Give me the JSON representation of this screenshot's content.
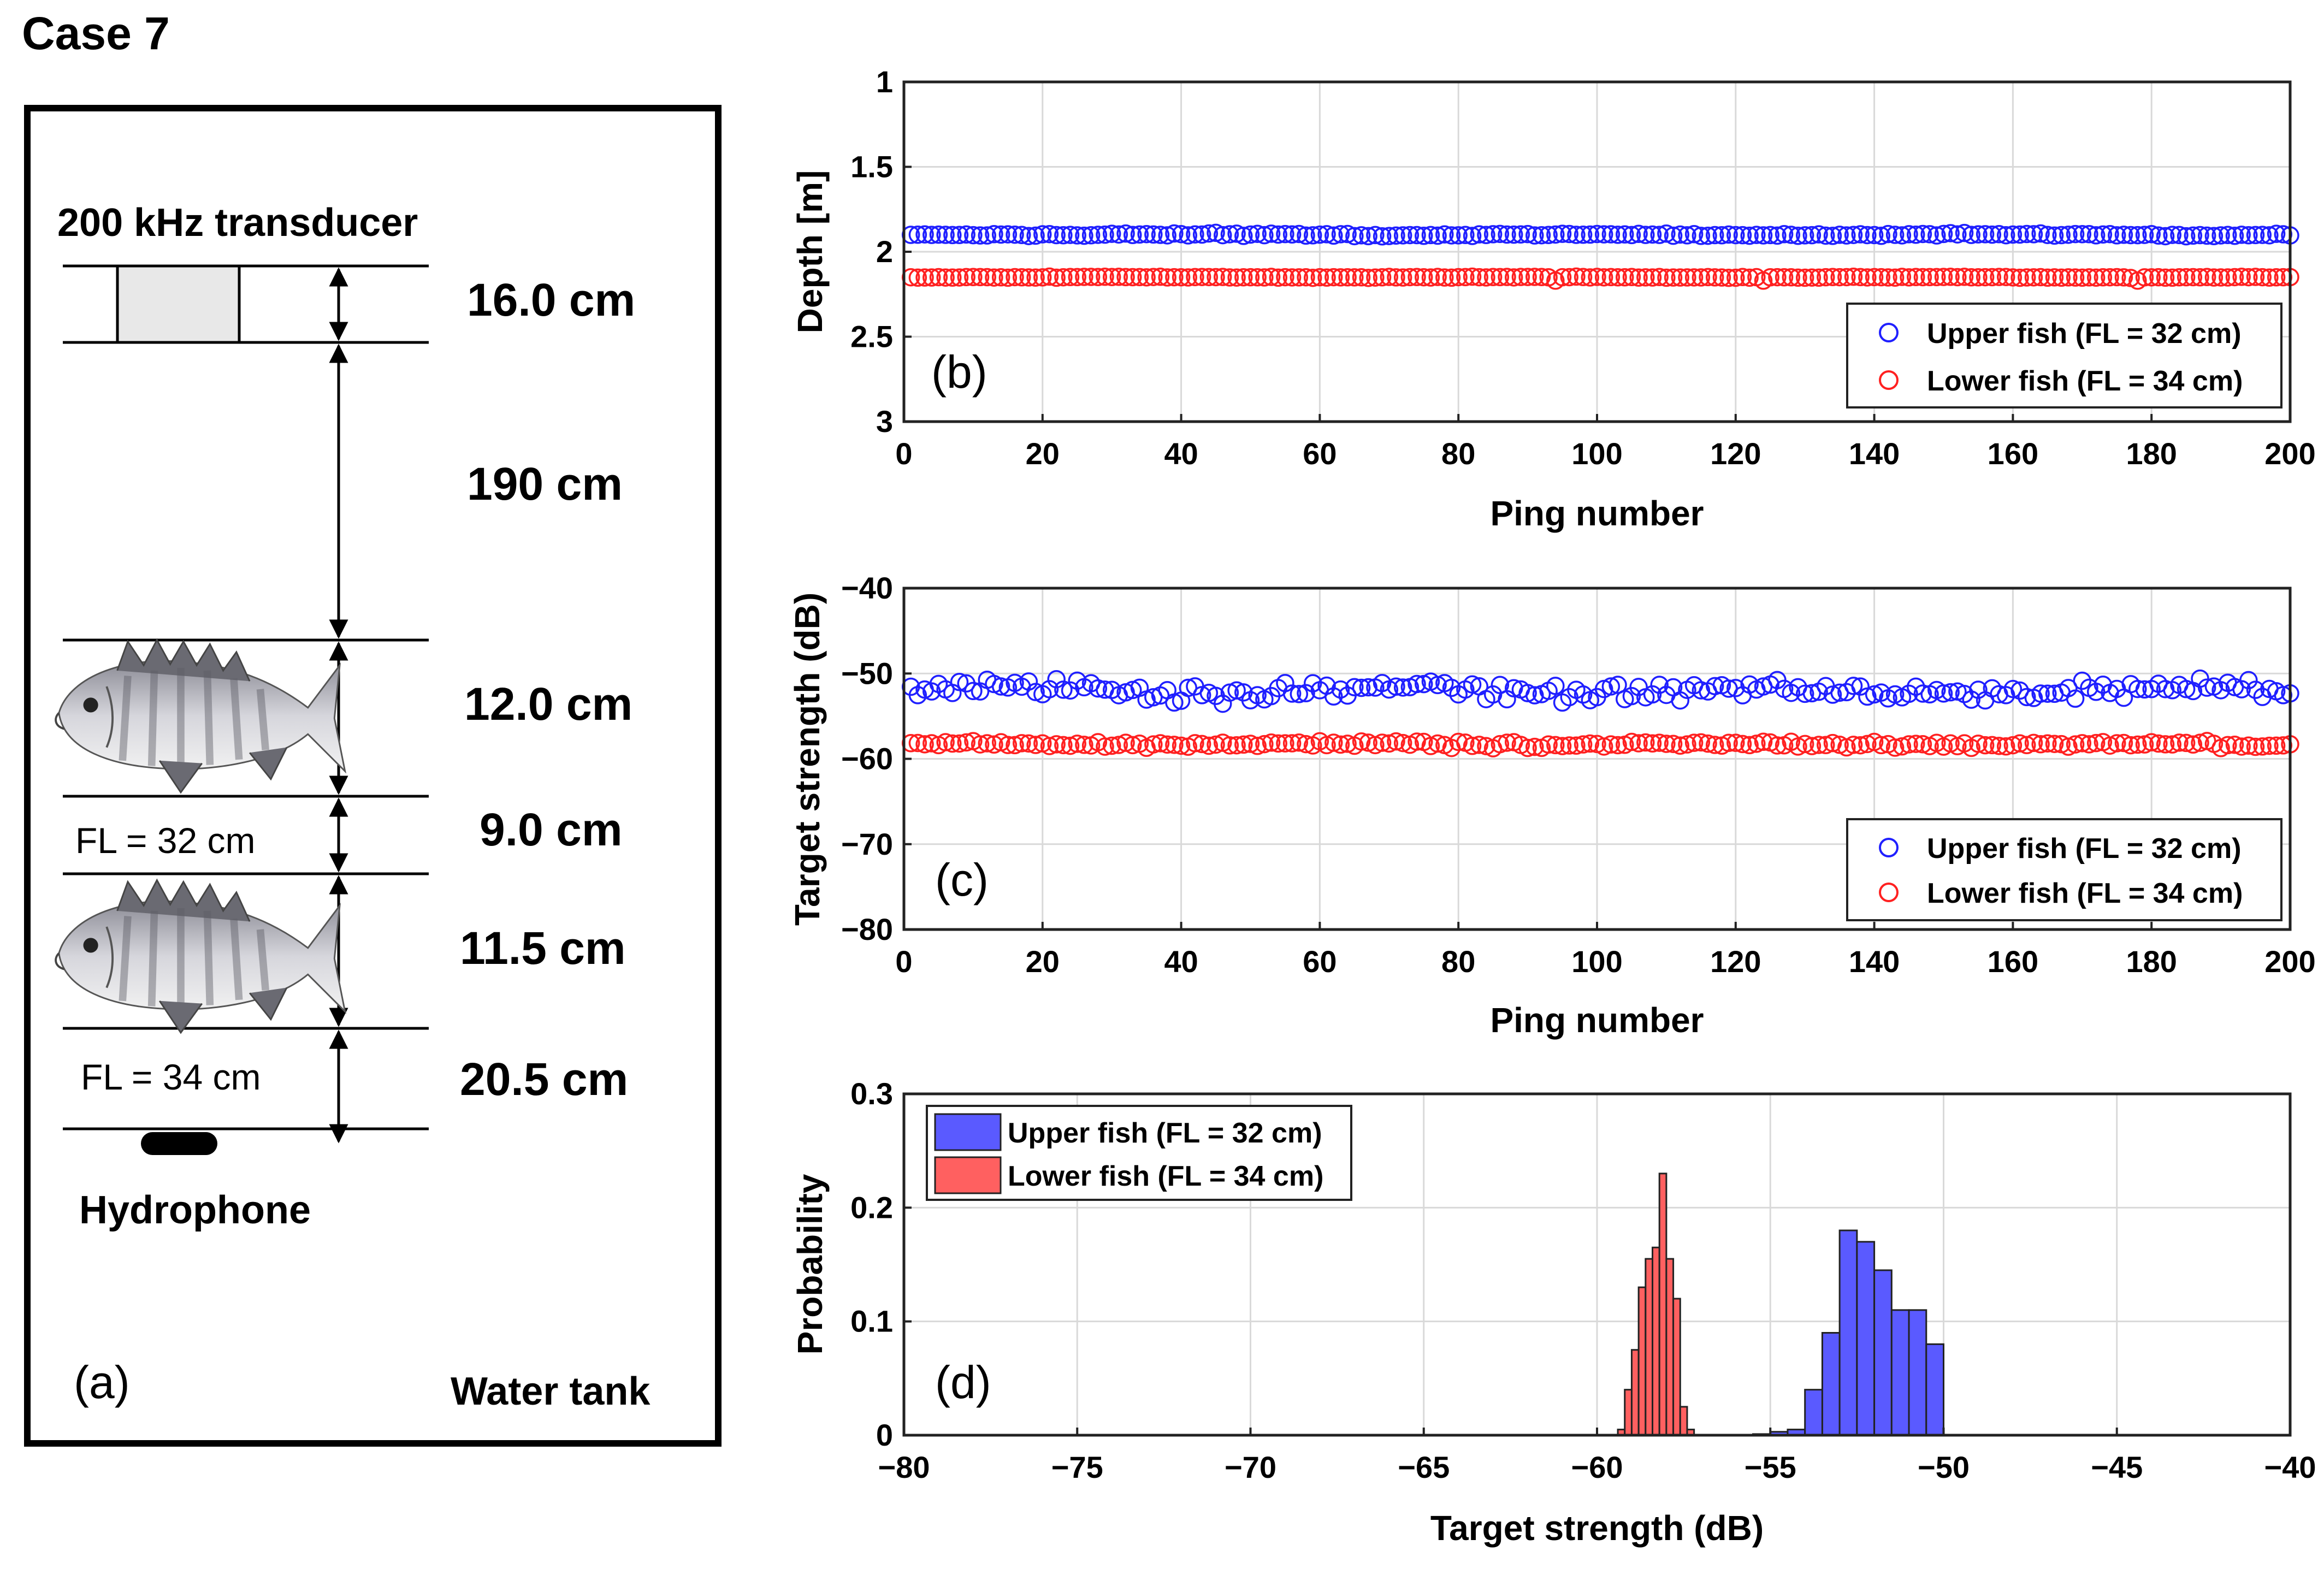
{
  "figure_title": "Case 7",
  "diagram": {
    "panel_label": "(a)",
    "tank_label": "Water tank",
    "transducer_label": "200 kHz transducer",
    "hydrophone_label": "Hydrophone",
    "upper_fish_label": "FL = 32 cm",
    "lower_fish_label": "FL = 34 cm",
    "distances": [
      "16.0 cm",
      "190 cm",
      "12.0 cm",
      "9.0 cm",
      "11.5 cm",
      "20.5 cm"
    ],
    "colors": {
      "transducer_fill": "#e8e8e8",
      "hydrophone": "#000000"
    },
    "icons": [
      "fish-icon",
      "hydrophone-icon"
    ]
  },
  "chart_data": [
    {
      "id": "b",
      "type": "scatter",
      "panel_label": "(b)",
      "xlabel": "Ping number",
      "ylabel": "Depth [m]",
      "xlim": [
        0,
        200
      ],
      "ylim": [
        1,
        3
      ],
      "y_reversed": true,
      "xticks": [
        "0",
        "20",
        "40",
        "60",
        "80",
        "100",
        "120",
        "140",
        "160",
        "180",
        "200"
      ],
      "yticks": [
        "1",
        "1.5",
        "2",
        "2.5",
        "3"
      ],
      "grid": true,
      "legend_position": "bottom-right",
      "series": [
        {
          "name": "Upper fish (FL = 32 cm)",
          "color": "#1f1fff",
          "marker": "open-circle",
          "pattern": {
            "count": 200,
            "mean": 1.9,
            "jitter": 0.01,
            "outliers": []
          }
        },
        {
          "name": "Lower fish (FL = 34 cm)",
          "color": "#ff2020",
          "marker": "open-circle",
          "pattern": {
            "count": 200,
            "mean": 2.15,
            "jitter": 0.004,
            "outliers": [
              [
                94,
                2.17
              ],
              [
                124,
                2.17
              ],
              [
                178,
                2.17
              ]
            ]
          }
        }
      ]
    },
    {
      "id": "c",
      "type": "scatter",
      "panel_label": "(c)",
      "xlabel": "Ping number",
      "ylabel": "Target strength (dB)",
      "xlim": [
        0,
        200
      ],
      "ylim": [
        -80,
        -40
      ],
      "xticks": [
        "0",
        "20",
        "40",
        "60",
        "80",
        "100",
        "120",
        "140",
        "160",
        "180",
        "200"
      ],
      "yticks": [
        "−40",
        "−50",
        "−60",
        "−70",
        "−80"
      ],
      "grid": true,
      "legend_position": "bottom-right",
      "series": [
        {
          "name": "Upper fish (FL = 32 cm)",
          "color": "#1f1fff",
          "marker": "open-circle",
          "pattern": {
            "count": 200,
            "mean": -52,
            "jitter": 1.6
          }
        },
        {
          "name": "Lower fish (FL = 34 cm)",
          "color": "#ff2020",
          "marker": "open-circle",
          "pattern": {
            "count": 200,
            "mean": -58.3,
            "jitter": 0.5
          }
        }
      ]
    },
    {
      "id": "d",
      "type": "bar",
      "subtype": "histogram",
      "panel_label": "(d)",
      "xlabel": "Target strength (dB)",
      "ylabel": "Probability",
      "xlim": [
        -80,
        -40
      ],
      "ylim": [
        0,
        0.3
      ],
      "xticks": [
        "−80",
        "−75",
        "−70",
        "−65",
        "−60",
        "−55",
        "−50",
        "−45",
        "−40"
      ],
      "yticks": [
        "0",
        "0.1",
        "0.2",
        "0.3"
      ],
      "grid": true,
      "legend_position": "top-left",
      "series": [
        {
          "name": "Upper fish (FL = 32 cm)",
          "color": "#5a5aff",
          "bin_width": 0.5,
          "bin_left_edges": [
            -55.5,
            -55.0,
            -54.5,
            -54.0,
            -53.5,
            -53.0,
            -52.5,
            -52.0,
            -51.5,
            -51.0,
            -50.5
          ],
          "values": [
            0.001,
            0.003,
            0.005,
            0.04,
            0.09,
            0.18,
            0.17,
            0.145,
            0.11,
            0.11,
            0.08
          ]
        },
        {
          "name": "Lower fish (FL = 34 cm)",
          "color": "#ff6060",
          "bin_width": 0.2,
          "bin_left_edges": [
            -59.4,
            -59.2,
            -59.0,
            -58.8,
            -58.6,
            -58.4,
            -58.2,
            -58.0,
            -57.8,
            -57.6,
            -57.4
          ],
          "values": [
            0.005,
            0.04,
            0.075,
            0.13,
            0.155,
            0.165,
            0.23,
            0.155,
            0.12,
            0.025,
            0.005
          ]
        }
      ]
    }
  ]
}
